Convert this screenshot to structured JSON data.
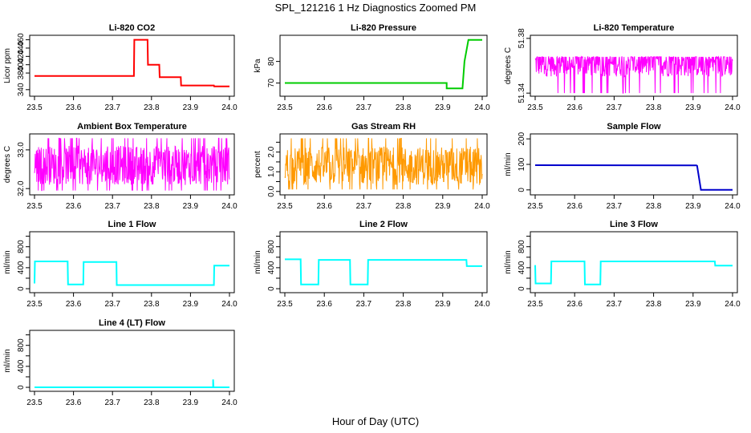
{
  "figure": {
    "title": "SPL_121216  1 Hz Diagnostics Zoomed PM",
    "xlabel": "Hour of Day (UTC)"
  },
  "chart_data": [
    {
      "type": "line",
      "title": "Li-820 CO2",
      "ylabel": "Licor ppm",
      "color": "#ff0000",
      "xlim": [
        23.5,
        24.0
      ],
      "ylim": [
        330,
        465
      ],
      "xticks": [
        "23.5",
        "23.6",
        "23.7",
        "23.8",
        "23.9",
        "24.0"
      ],
      "yticks": [
        340,
        380,
        400,
        420,
        440,
        460
      ],
      "yticklabels": [
        "340",
        "380",
        "400",
        "420",
        "440",
        "460"
      ],
      "series": [
        {
          "x": [
            23.5,
            23.755,
            23.756,
            23.79,
            23.791,
            23.82,
            23.821,
            23.875,
            23.876,
            23.96,
            23.961,
            24.0
          ],
          "values": [
            373,
            373,
            460,
            460,
            400,
            400,
            370,
            370,
            350,
            350,
            348,
            348
          ]
        }
      ]
    },
    {
      "type": "line",
      "title": "Li-820 Pressure",
      "ylabel": "kPa",
      "color": "#00cc00",
      "xlim": [
        23.5,
        24.0
      ],
      "ylim": [
        65,
        91
      ],
      "xticks": [
        "23.5",
        "23.6",
        "23.7",
        "23.8",
        "23.9",
        "24.0"
      ],
      "yticks": [
        70,
        80
      ],
      "yticklabels": [
        "70",
        "80"
      ],
      "series": [
        {
          "x": [
            23.5,
            23.91,
            23.91,
            23.95,
            23.955,
            23.965,
            24.0
          ],
          "values": [
            70,
            70,
            67.5,
            67.5,
            80,
            90,
            90
          ]
        }
      ]
    },
    {
      "type": "line",
      "title": "Li-820 Temperature",
      "ylabel": "degrees C",
      "color": "#ff00ff",
      "xlim": [
        23.5,
        24.0
      ],
      "ylim": [
        51.3395,
        51.3805
      ],
      "xticks": [
        "23.5",
        "23.6",
        "23.7",
        "23.8",
        "23.9",
        "24.0"
      ],
      "yticks": [
        51.34,
        51.38
      ],
      "yticklabels": [
        "51.34",
        "51.38"
      ],
      "series": [
        {
          "noise": true,
          "lo": 51.34,
          "hi": 51.3665,
          "mid": 51.362
        }
      ]
    },
    {
      "type": "line",
      "title": "Ambient Box Temperature",
      "ylabel": "degrees C",
      "color": "#ff00ff",
      "xlim": [
        23.5,
        24.0
      ],
      "ylim": [
        31.9,
        33.35
      ],
      "xticks": [
        "23.5",
        "23.6",
        "23.7",
        "23.8",
        "23.9",
        "24.0"
      ],
      "yticks": [
        32.0,
        33.0
      ],
      "yticklabels": [
        "32.0",
        "33.0"
      ],
      "series": [
        {
          "noise": true,
          "lo": 31.95,
          "hi": 33.3,
          "mid": 32.6
        }
      ]
    },
    {
      "type": "line",
      "title": "Gas Stream RH",
      "ylabel": "percent",
      "color": "#ff9900",
      "xlim": [
        23.5,
        24.0
      ],
      "ylim": [
        -0.05,
        2.8
      ],
      "xticks": [
        "23.5",
        "23.6",
        "23.7",
        "23.8",
        "23.9",
        "24.0"
      ],
      "yticks": [
        0.0,
        0.5,
        1.0,
        1.5,
        2.0,
        2.5
      ],
      "yticklabels": [
        "0.0",
        "",
        "1.0",
        "",
        "2.0",
        ""
      ],
      "series": [
        {
          "noise": true,
          "lo": 0.1,
          "hi": 2.7,
          "mid": 1.3
        }
      ]
    },
    {
      "type": "line",
      "title": "Sample Flow",
      "ylabel": "ml/min",
      "color": "#0000cc",
      "xlim": [
        23.5,
        24.0
      ],
      "ylim": [
        -10,
        210
      ],
      "xticks": [
        "23.5",
        "23.6",
        "23.7",
        "23.8",
        "23.9",
        "24.0"
      ],
      "yticks": [
        0,
        100,
        200
      ],
      "yticklabels": [
        "0",
        "100",
        "200"
      ],
      "series": [
        {
          "x": [
            23.5,
            23.91,
            23.91,
            23.92,
            24.0
          ],
          "values": [
            97,
            96,
            97,
            0,
            0
          ]
        }
      ]
    },
    {
      "type": "line",
      "title": "Line 1 Flow",
      "ylabel": "ml/min",
      "color": "#00ffff",
      "xlim": [
        23.5,
        24.0
      ],
      "ylim": [
        -30,
        1040
      ],
      "xticks": [
        "23.5",
        "23.6",
        "23.7",
        "23.8",
        "23.9",
        "24.0"
      ],
      "yticks": [
        0,
        200,
        400,
        600,
        800,
        1000
      ],
      "yticklabels": [
        "0",
        "",
        "400",
        "",
        "800",
        ""
      ],
      "series": [
        {
          "x": [
            23.5,
            23.501,
            23.585,
            23.586,
            23.625,
            23.626,
            23.71,
            23.711,
            23.96,
            23.961,
            24.0
          ],
          "values": [
            100,
            520,
            520,
            80,
            80,
            510,
            510,
            70,
            70,
            440,
            440
          ]
        }
      ]
    },
    {
      "type": "line",
      "title": "Line 2 Flow",
      "ylabel": "ml/min",
      "color": "#00ffff",
      "xlim": [
        23.5,
        24.0
      ],
      "ylim": [
        -30,
        1040
      ],
      "xticks": [
        "23.5",
        "23.6",
        "23.7",
        "23.8",
        "23.9",
        "24.0"
      ],
      "yticks": [
        0,
        200,
        400,
        600,
        800,
        1000
      ],
      "yticklabels": [
        "0",
        "",
        "400",
        "",
        "800",
        ""
      ],
      "series": [
        {
          "x": [
            23.5,
            23.54,
            23.541,
            23.585,
            23.586,
            23.665,
            23.666,
            23.71,
            23.711,
            23.96,
            23.961,
            24.0
          ],
          "values": [
            560,
            560,
            80,
            80,
            550,
            550,
            80,
            80,
            550,
            550,
            430,
            430
          ]
        }
      ]
    },
    {
      "type": "line",
      "title": "Line 3 Flow",
      "ylabel": "ml/min",
      "color": "#00ffff",
      "xlim": [
        23.5,
        24.0
      ],
      "ylim": [
        -30,
        1040
      ],
      "xticks": [
        "23.5",
        "23.6",
        "23.7",
        "23.8",
        "23.9",
        "24.0"
      ],
      "yticks": [
        0,
        200,
        400,
        600,
        800,
        1000
      ],
      "yticklabels": [
        "0",
        "",
        "400",
        "",
        "800",
        ""
      ],
      "series": [
        {
          "x": [
            23.5,
            23.501,
            23.54,
            23.541,
            23.625,
            23.626,
            23.665,
            23.666,
            23.955,
            23.956,
            24.0
          ],
          "values": [
            450,
            100,
            100,
            520,
            520,
            80,
            80,
            520,
            520,
            440,
            440
          ]
        }
      ]
    },
    {
      "type": "line",
      "title": "Line 4 (LT) Flow",
      "ylabel": "ml/min",
      "color": "#00ffff",
      "xlim": [
        23.5,
        24.0
      ],
      "ylim": [
        -30,
        1040
      ],
      "xticks": [
        "23.5",
        "23.6",
        "23.7",
        "23.8",
        "23.9",
        "24.0"
      ],
      "yticks": [
        0,
        200,
        400,
        600,
        800,
        1000
      ],
      "yticklabels": [
        "0",
        "",
        "400",
        "",
        "800",
        ""
      ],
      "series": [
        {
          "x": [
            23.5,
            23.958,
            23.958,
            23.959,
            24.0
          ],
          "values": [
            0,
            0,
            150,
            0,
            0
          ]
        }
      ]
    }
  ]
}
